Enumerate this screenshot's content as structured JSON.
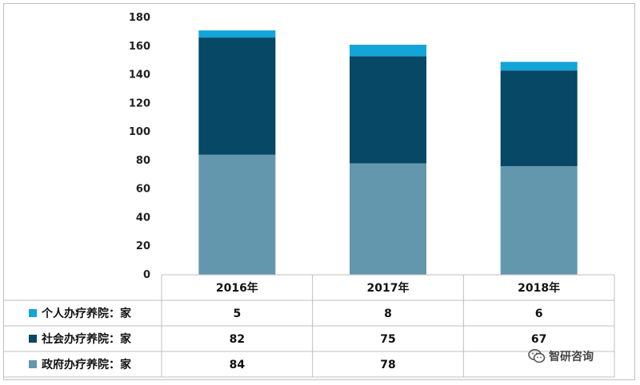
{
  "chart_data": {
    "type": "bar",
    "stacked": true,
    "categories": [
      "2016年",
      "2017年",
      "2018年"
    ],
    "series": [
      {
        "name": "政府办疗养院：家",
        "values": [
          84,
          78,
          76
        ],
        "color": "#6397ae"
      },
      {
        "name": "社会办疗养院：家",
        "values": [
          82,
          75,
          67
        ],
        "color": "#064866"
      },
      {
        "name": "个人办疗养院：家",
        "values": [
          5,
          8,
          6
        ],
        "color": "#13a4d8"
      }
    ],
    "table_rows": [
      {
        "label": "个人办疗养院：家",
        "cells": [
          "5",
          "8",
          "6"
        ],
        "color": "#13a4d8"
      },
      {
        "label": "社会办疗养院：家",
        "cells": [
          "82",
          "75",
          "67"
        ],
        "color": "#064866"
      },
      {
        "label": "政府办疗养院：家",
        "cells": [
          "84",
          "78",
          ""
        ],
        "color": "#6397ae"
      }
    ],
    "yticks": [
      0,
      20,
      40,
      60,
      80,
      100,
      120,
      140,
      160,
      180
    ],
    "ylim": [
      0,
      180
    ],
    "grid": false,
    "legend": "data-table-left"
  },
  "watermark": {
    "text": "智研咨询",
    "icon": "wechat-icon"
  }
}
